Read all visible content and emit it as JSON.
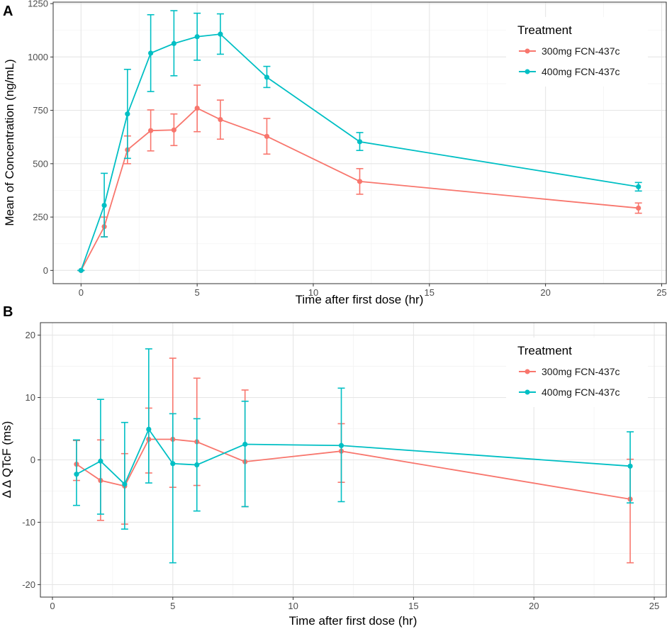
{
  "colors": {
    "s300": "#F8766D",
    "s400": "#00BFC4"
  },
  "chart_data": [
    {
      "panel_label": "A",
      "type": "line",
      "xlabel": "Time after first dose (hr)",
      "ylabel": "Mean of Concentration (ng/mL)",
      "xlim": [
        -1.2,
        25.2
      ],
      "ylim": [
        -62,
        1257
      ],
      "xticks": [
        0,
        5,
        10,
        15,
        20,
        25
      ],
      "xtick_labels": [
        "0",
        "5",
        "10",
        "15",
        "20",
        "25"
      ],
      "yticks": [
        0,
        250,
        500,
        750,
        1000,
        1250
      ],
      "ytick_labels": [
        "0",
        "250",
        "500",
        "750",
        "1000",
        "1250"
      ],
      "legend": {
        "title": "Treatment",
        "position": "top-right"
      },
      "series": [
        {
          "name": "300mg FCN-437c",
          "color_key": "s300",
          "x": [
            0,
            1,
            2,
            3,
            4,
            5,
            6,
            8,
            12,
            24
          ],
          "y": [
            0,
            205,
            565,
            655,
            658,
            760,
            707,
            628,
            417,
            292
          ],
          "err_low": [
            0,
            158,
            500,
            560,
            585,
            650,
            615,
            545,
            357,
            268
          ],
          "err_high": [
            0,
            250,
            630,
            752,
            733,
            868,
            798,
            712,
            477,
            316
          ]
        },
        {
          "name": "400mg FCN-437c",
          "color_key": "s400",
          "x": [
            0,
            1,
            2,
            3,
            4,
            5,
            6,
            8,
            12,
            24
          ],
          "y": [
            0,
            305,
            733,
            1018,
            1063,
            1095,
            1107,
            905,
            603,
            392
          ],
          "err_low": [
            0,
            157,
            525,
            838,
            912,
            985,
            1013,
            857,
            562,
            372
          ],
          "err_high": [
            0,
            455,
            942,
            1198,
            1217,
            1205,
            1202,
            956,
            646,
            412
          ]
        }
      ]
    },
    {
      "panel_label": "B",
      "type": "line",
      "xlabel": "Time after first dose (hr)",
      "ylabel": "Δ Δ QTcF (ms)",
      "xlim": [
        -0.5,
        25.5
      ],
      "ylim": [
        -22,
        22
      ],
      "xticks": [
        0,
        5,
        10,
        15,
        20,
        25
      ],
      "xtick_labels": [
        "0",
        "5",
        "10",
        "15",
        "20",
        "25"
      ],
      "yticks": [
        -20,
        -10,
        0,
        10,
        20
      ],
      "ytick_labels": [
        "-20",
        "-10",
        "0",
        "10",
        "20"
      ],
      "legend": {
        "title": "Treatment",
        "position": "top-right"
      },
      "series": [
        {
          "name": "300mg FCN-437c",
          "color_key": "s300",
          "x": [
            1,
            2,
            3,
            4,
            5,
            6,
            8,
            12,
            24
          ],
          "y": [
            -0.7,
            -3.3,
            -4.2,
            3.3,
            3.3,
            2.9,
            -0.3,
            1.4,
            -6.3
          ],
          "err_low": [
            -3.3,
            -9.7,
            -10.3,
            -2.1,
            -4.4,
            -4.1,
            -7.5,
            -3.6,
            -16.5
          ],
          "err_high": [
            3.1,
            3.2,
            1.0,
            8.3,
            16.3,
            13.1,
            11.2,
            5.8,
            0.1
          ]
        },
        {
          "name": "400mg FCN-437c",
          "color_key": "s400",
          "x": [
            1,
            2,
            3,
            4,
            5,
            6,
            8,
            12,
            24
          ],
          "y": [
            -2.3,
            -0.2,
            -3.9,
            4.9,
            -0.6,
            -0.8,
            2.5,
            2.3,
            -1.0
          ],
          "err_low": [
            -7.3,
            -8.7,
            -11.1,
            -3.7,
            -16.5,
            -8.2,
            -7.5,
            -6.7,
            -6.9
          ],
          "err_high": [
            3.2,
            9.7,
            6.0,
            17.8,
            7.4,
            6.6,
            9.4,
            11.5,
            4.5
          ]
        }
      ]
    }
  ]
}
